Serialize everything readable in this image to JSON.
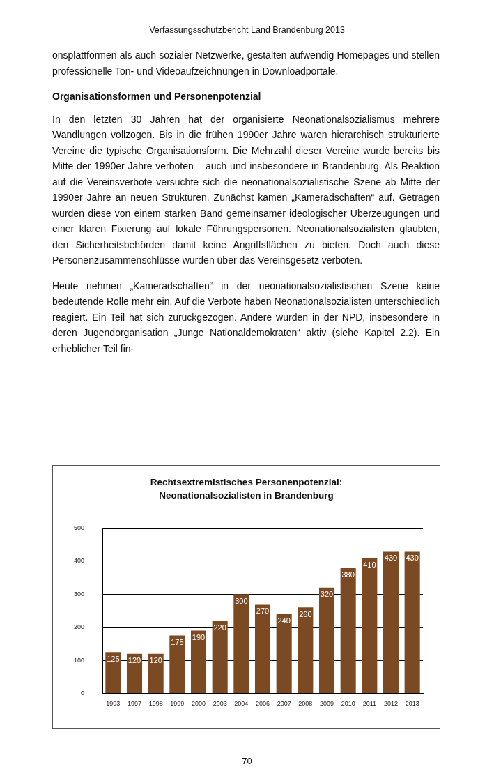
{
  "chart_data": {
    "type": "bar",
    "title": "Rechtsextremistisches Personenpotenzial: Neonationalsozialisten in Brandenburg",
    "categories": [
      "1993",
      "1997",
      "1998",
      "1999",
      "2000",
      "2003",
      "2004",
      "2006",
      "2007",
      "2008",
      "2009",
      "2010",
      "2011",
      "2012",
      "2013"
    ],
    "values": [
      125,
      120,
      120,
      175,
      190,
      220,
      300,
      270,
      240,
      260,
      320,
      380,
      410,
      430,
      430
    ],
    "color": "#7b4a22",
    "data_labels": true,
    "ylim": [
      0,
      500
    ],
    "yticks": [
      0,
      100,
      200,
      300,
      400,
      500
    ],
    "grid": "y",
    "annotations": [
      "Verfassungsschutzbericht Land Brandenburg 2013",
      "onsplattformen als auch sozialer Netzwerke, gestalten aufwendig Homepages und stellen professionelle Ton- und Videoaufzeichnungen in Downloadportale.",
      "Organisationsformen und Personenpotenzial",
      "In den letzten 30 Jahren hat der organisierte Neonationalsozialismus mehrere Wandlungen vollzogen. Bis in die frühen 1990er Jahre waren hierarchisch strukturierte Vereine die typische Organisationsform. Die Mehrzahl dieser Vereine wurde bereits bis Mitte der 1990er Jahre verboten – auch und insbesondere in Brandenburg. Als Reaktion auf die Vereinsverbote versuchte sich die neonationalsozialistische Szene ab Mitte der 1990er Jahre an neuen Strukturen. Zunächst kamen „Kameradschaften“ auf. Getragen wurden diese von einem starken Band gemeinsamer ideologischer Überzeugungen und einer klaren Fixierung auf lokale Führungspersonen. Neonationalsozialisten glaubten, den Sicherheitsbehörden damit keine Angriffsflächen zu bieten. Doch auch diese Personenzusammenschlüsse wurden über das Vereinsgesetz verboten.",
      "Heute nehmen „Kameradschaften“ in der neonationalsozialistischen Szene keine bedeutende Rolle mehr ein. Auf die Verbote haben Neonationalsozialisten unterschiedlich reagiert. Ein Teil hat sich zurückgezogen. Andere wurden in der NPD, insbesondere in deren Jugendorganisation „Junge Nationaldemokraten“ aktiv (siehe Kapitel 2.2). Ein erheblicher Teil fin-",
      "70"
    ]
  }
}
